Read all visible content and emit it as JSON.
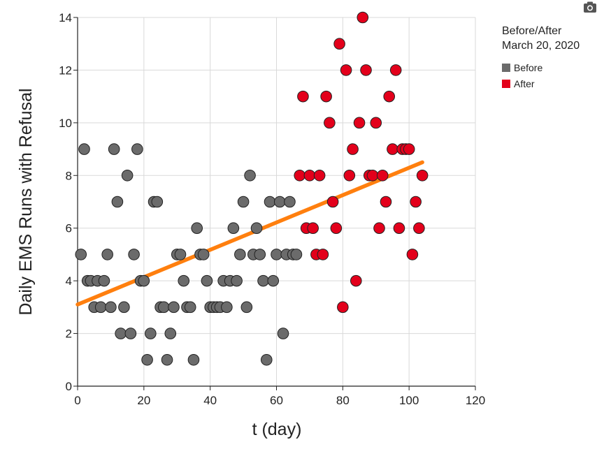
{
  "chart_data": {
    "type": "scatter",
    "xlabel": "t (day)",
    "ylabel": "Daily EMS Runs with Refusal",
    "xlim": [
      0,
      120
    ],
    "ylim": [
      0,
      14
    ],
    "xticks": [
      0,
      20,
      40,
      60,
      80,
      100,
      120
    ],
    "yticks": [
      0,
      2,
      4,
      6,
      8,
      10,
      12,
      14
    ],
    "grid": true,
    "legend": {
      "title_lines": [
        "Before/After",
        "March 20, 2020"
      ],
      "placement": "right"
    },
    "series": [
      {
        "name": "Before",
        "color": "#6b6b6b",
        "points": [
          [
            1,
            5
          ],
          [
            2,
            9
          ],
          [
            3,
            4
          ],
          [
            4,
            4
          ],
          [
            5,
            3
          ],
          [
            6,
            4
          ],
          [
            7,
            3
          ],
          [
            8,
            4
          ],
          [
            9,
            5
          ],
          [
            10,
            3
          ],
          [
            11,
            9
          ],
          [
            12,
            7
          ],
          [
            13,
            2
          ],
          [
            14,
            3
          ],
          [
            15,
            8
          ],
          [
            16,
            2
          ],
          [
            17,
            5
          ],
          [
            18,
            9
          ],
          [
            19,
            4
          ],
          [
            20,
            4
          ],
          [
            21,
            1
          ],
          [
            22,
            2
          ],
          [
            23,
            7
          ],
          [
            24,
            7
          ],
          [
            25,
            3
          ],
          [
            26,
            3
          ],
          [
            27,
            1
          ],
          [
            28,
            2
          ],
          [
            29,
            3
          ],
          [
            30,
            5
          ],
          [
            31,
            5
          ],
          [
            32,
            4
          ],
          [
            33,
            3
          ],
          [
            34,
            3
          ],
          [
            35,
            1
          ],
          [
            36,
            6
          ],
          [
            37,
            5
          ],
          [
            38,
            5
          ],
          [
            39,
            4
          ],
          [
            40,
            3
          ],
          [
            41,
            3
          ],
          [
            42,
            3
          ],
          [
            43,
            3
          ],
          [
            44,
            4
          ],
          [
            45,
            3
          ],
          [
            46,
            4
          ],
          [
            47,
            6
          ],
          [
            48,
            4
          ],
          [
            49,
            5
          ],
          [
            50,
            7
          ],
          [
            51,
            3
          ],
          [
            52,
            8
          ],
          [
            53,
            5
          ],
          [
            54,
            6
          ],
          [
            55,
            5
          ],
          [
            56,
            4
          ],
          [
            57,
            1
          ],
          [
            58,
            7
          ],
          [
            59,
            4
          ],
          [
            60,
            5
          ],
          [
            61,
            7
          ],
          [
            62,
            2
          ],
          [
            63,
            5
          ],
          [
            64,
            7
          ],
          [
            65,
            5
          ],
          [
            66,
            5
          ]
        ]
      },
      {
        "name": "After",
        "color": "#e3001b",
        "points": [
          [
            67,
            8
          ],
          [
            68,
            11
          ],
          [
            69,
            6
          ],
          [
            70,
            8
          ],
          [
            71,
            6
          ],
          [
            72,
            5
          ],
          [
            73,
            8
          ],
          [
            74,
            5
          ],
          [
            75,
            11
          ],
          [
            76,
            10
          ],
          [
            77,
            7
          ],
          [
            78,
            6
          ],
          [
            79,
            13
          ],
          [
            80,
            3
          ],
          [
            81,
            12
          ],
          [
            82,
            8
          ],
          [
            83,
            9
          ],
          [
            84,
            4
          ],
          [
            85,
            10
          ],
          [
            86,
            14
          ],
          [
            87,
            12
          ],
          [
            88,
            8
          ],
          [
            89,
            8
          ],
          [
            90,
            10
          ],
          [
            91,
            6
          ],
          [
            92,
            8
          ],
          [
            93,
            7
          ],
          [
            94,
            11
          ],
          [
            95,
            9
          ],
          [
            96,
            12
          ],
          [
            97,
            6
          ],
          [
            98,
            9
          ],
          [
            99,
            9
          ],
          [
            100,
            9
          ],
          [
            101,
            5
          ],
          [
            102,
            7
          ],
          [
            103,
            6
          ],
          [
            104,
            8
          ]
        ]
      }
    ],
    "trendline": {
      "color": "#ff7f0e",
      "x": [
        0,
        104
      ],
      "y": [
        3.1,
        8.5
      ]
    }
  },
  "toolbar": {
    "camera_icon": "camera-icon"
  }
}
